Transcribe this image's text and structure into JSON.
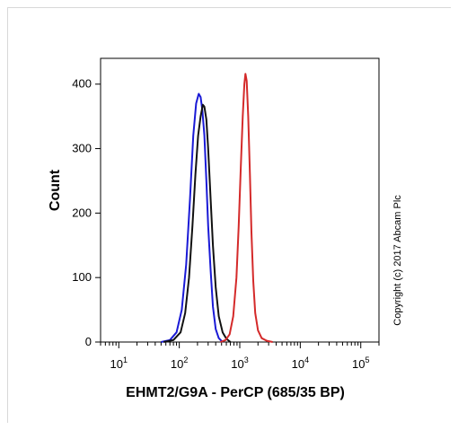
{
  "chart_data": {
    "type": "line",
    "xscale": "log",
    "xlim": [
      5,
      200000
    ],
    "ylim": [
      0,
      440
    ],
    "xlabel": "EHMT2/G9A - PerCP (685/35 BP)",
    "ylabel": "Count",
    "yticks": [
      0,
      100,
      200,
      300,
      400
    ],
    "ytick_labels": [
      "0",
      "100",
      "200",
      "300",
      "400"
    ],
    "xticks": [
      10,
      100,
      1000,
      10000,
      100000
    ],
    "xtick_labels": [
      {
        "base": "10",
        "exp": "1"
      },
      {
        "base": "10",
        "exp": "2"
      },
      {
        "base": "10",
        "exp": "3"
      },
      {
        "base": "10",
        "exp": "4"
      },
      {
        "base": "10",
        "exp": "5"
      }
    ],
    "grid": false,
    "series": [
      {
        "color": "#1a1ad6",
        "points": [
          [
            50,
            0
          ],
          [
            70,
            3
          ],
          [
            90,
            15
          ],
          [
            110,
            50
          ],
          [
            130,
            120
          ],
          [
            150,
            220
          ],
          [
            170,
            320
          ],
          [
            190,
            370
          ],
          [
            210,
            385
          ],
          [
            225,
            380
          ],
          [
            240,
            360
          ],
          [
            260,
            320
          ],
          [
            280,
            250
          ],
          [
            300,
            180
          ],
          [
            330,
            110
          ],
          [
            360,
            55
          ],
          [
            400,
            20
          ],
          [
            450,
            6
          ],
          [
            520,
            0
          ]
        ]
      },
      {
        "color": "#111111",
        "points": [
          [
            55,
            0
          ],
          [
            80,
            3
          ],
          [
            105,
            15
          ],
          [
            125,
            45
          ],
          [
            145,
            100
          ],
          [
            165,
            180
          ],
          [
            185,
            260
          ],
          [
            205,
            320
          ],
          [
            225,
            350
          ],
          [
            245,
            368
          ],
          [
            260,
            365
          ],
          [
            280,
            345
          ],
          [
            300,
            300
          ],
          [
            330,
            220
          ],
          [
            360,
            150
          ],
          [
            400,
            85
          ],
          [
            450,
            40
          ],
          [
            520,
            15
          ],
          [
            600,
            5
          ],
          [
            700,
            0
          ]
        ]
      },
      {
        "color": "#d42a2a",
        "points": [
          [
            480,
            0
          ],
          [
            580,
            3
          ],
          [
            680,
            12
          ],
          [
            780,
            40
          ],
          [
            880,
            100
          ],
          [
            960,
            180
          ],
          [
            1040,
            270
          ],
          [
            1120,
            350
          ],
          [
            1190,
            400
          ],
          [
            1240,
            416
          ],
          [
            1300,
            405
          ],
          [
            1380,
            350
          ],
          [
            1470,
            260
          ],
          [
            1560,
            170
          ],
          [
            1670,
            95
          ],
          [
            1800,
            45
          ],
          [
            2000,
            18
          ],
          [
            2300,
            6
          ],
          [
            2800,
            2
          ],
          [
            3500,
            0
          ]
        ]
      }
    ]
  },
  "watermark": "Copyright (c) 2017 Abcam Plc"
}
